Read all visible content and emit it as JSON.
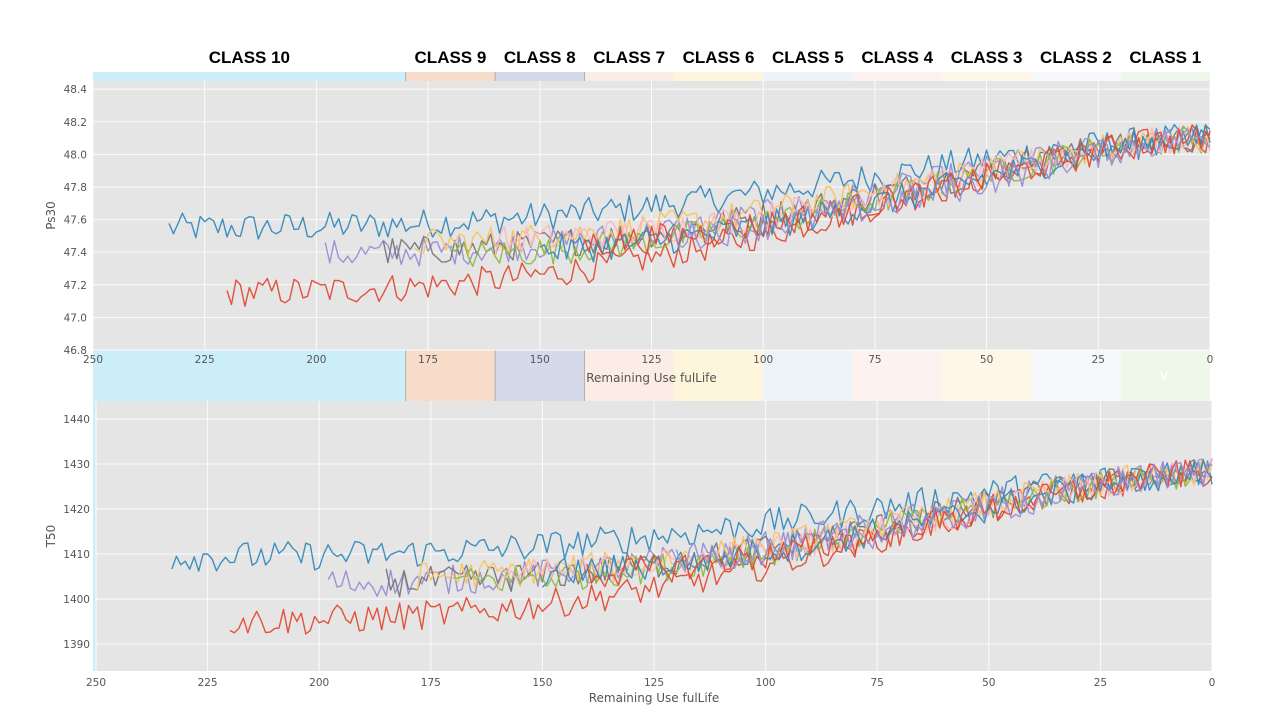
{
  "chart_data": [
    {
      "type": "line",
      "xlabel": "Remaining Use fulLife",
      "ylabel": "Ps30",
      "xlim": [
        250,
        0
      ],
      "ylim": [
        46.8,
        48.45
      ],
      "x_ticks": [
        250,
        225,
        200,
        175,
        150,
        125,
        100,
        75,
        50,
        25,
        0
      ],
      "y_ticks": [
        46.8,
        47.0,
        47.2,
        47.4,
        47.6,
        47.8,
        48.0,
        48.2,
        48.4
      ],
      "grid": true,
      "series_count": 10,
      "trend": {
        "start_value": 47.4,
        "end_value": 48.1
      }
    },
    {
      "type": "line",
      "xlabel": "Remaining Use fulLife",
      "ylabel": "T50",
      "xlim": [
        250,
        0
      ],
      "ylim": [
        1384,
        1444
      ],
      "x_ticks": [
        250,
        225,
        200,
        175,
        150,
        125,
        100,
        75,
        50,
        25,
        0
      ],
      "y_ticks": [
        1390,
        1400,
        1410,
        1420,
        1430,
        1440
      ],
      "grid": true,
      "series_count": 10,
      "trend": {
        "start_value": 1404,
        "end_value": 1428
      }
    }
  ],
  "class_bands": [
    {
      "label": "CLASS 10",
      "from": 250,
      "to": 180,
      "color": "#5fc9ea",
      "alpha": 0.32
    },
    {
      "label": "CLASS 9",
      "from": 180,
      "to": 160,
      "color": "#e8935a",
      "alpha": 0.32
    },
    {
      "label": "CLASS 8",
      "from": 160,
      "to": 140,
      "color": "#7d8bbf",
      "alpha": 0.32
    },
    {
      "label": "CLASS 7",
      "from": 140,
      "to": 120,
      "color": "#f2b49a",
      "alpha": 0.25
    },
    {
      "label": "CLASS 6",
      "from": 120,
      "to": 100,
      "color": "#f7dc83",
      "alpha": 0.28
    },
    {
      "label": "CLASS 5",
      "from": 100,
      "to": 80,
      "color": "#c6d6f0",
      "alpha": 0.3
    },
    {
      "label": "CLASS 4",
      "from": 80,
      "to": 60,
      "color": "#f8d2c6",
      "alpha": 0.28
    },
    {
      "label": "CLASS 3",
      "from": 60,
      "to": 40,
      "color": "#fbe6b4",
      "alpha": 0.3
    },
    {
      "label": "CLASS 2",
      "from": 40,
      "to": 20,
      "color": "#e0e9f6",
      "alpha": 0.3
    },
    {
      "label": "CLASS 1",
      "from": 20,
      "to": 0,
      "color": "#cfe7c2",
      "alpha": 0.35
    }
  ],
  "stray_mark": "v",
  "colors": {
    "plot_bg": "#e5e5e5",
    "series": [
      "#348abd",
      "#e24a33",
      "#988ed5",
      "#777777",
      "#fbc15e",
      "#8eba42",
      "#ffb5b8",
      "#348abd",
      "#e24a33",
      "#988ed5"
    ]
  }
}
